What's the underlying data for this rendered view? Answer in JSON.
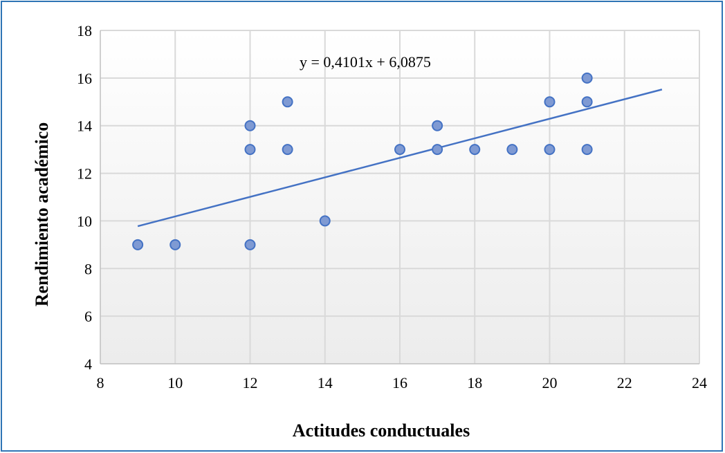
{
  "chart_data": {
    "type": "scatter",
    "title": "",
    "xlabel": "Actitudes conductuales",
    "ylabel": "Rendimiento académico",
    "xlim": [
      8,
      24
    ],
    "ylim": [
      4,
      18
    ],
    "xticks": [
      8,
      10,
      12,
      14,
      16,
      18,
      20,
      22,
      24
    ],
    "yticks": [
      4,
      6,
      8,
      10,
      12,
      14,
      16,
      18
    ],
    "grid": true,
    "legend": "none",
    "marker_color": "#7f9ad3",
    "marker_edge_color": "#4472c4",
    "trendline_color": "#4472c4",
    "points": [
      {
        "x": 9,
        "y": 9
      },
      {
        "x": 10,
        "y": 9
      },
      {
        "x": 12,
        "y": 14
      },
      {
        "x": 12,
        "y": 13
      },
      {
        "x": 12,
        "y": 9
      },
      {
        "x": 13,
        "y": 15
      },
      {
        "x": 13,
        "y": 13
      },
      {
        "x": 14,
        "y": 10
      },
      {
        "x": 16,
        "y": 13
      },
      {
        "x": 17,
        "y": 14
      },
      {
        "x": 17,
        "y": 13
      },
      {
        "x": 18,
        "y": 13
      },
      {
        "x": 19,
        "y": 13
      },
      {
        "x": 20,
        "y": 15
      },
      {
        "x": 20,
        "y": 13
      },
      {
        "x": 21,
        "y": 16
      },
      {
        "x": 21,
        "y": 15
      },
      {
        "x": 21,
        "y": 13
      }
    ],
    "trendline": {
      "type": "linear",
      "slope": 0.4101,
      "intercept": 6.0875,
      "x_range": [
        9,
        23
      ],
      "equation_label": "y = 0,4101x + 6,0875"
    }
  }
}
